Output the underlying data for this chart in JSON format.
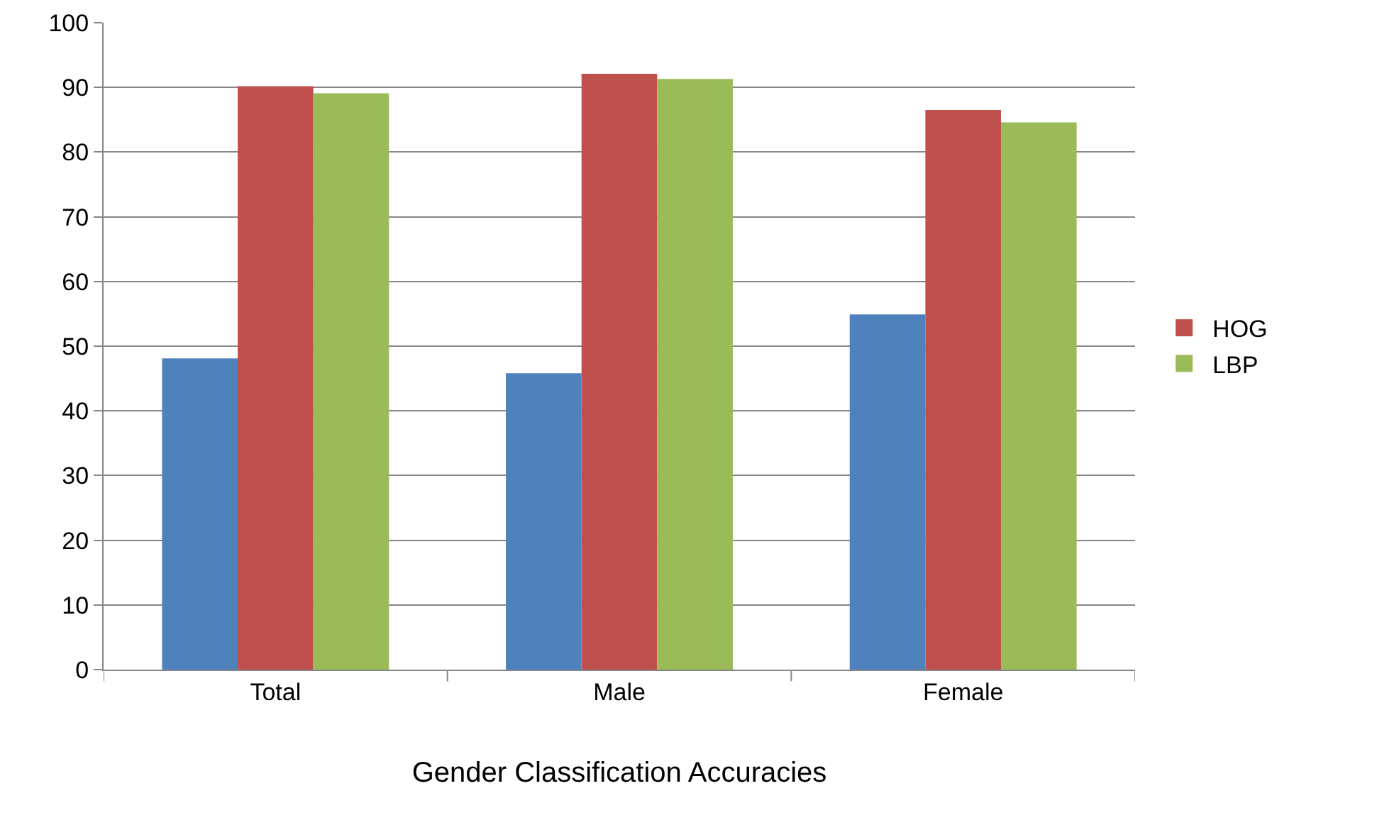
{
  "chart_data": {
    "type": "bar",
    "xlabel": "Gender Classification Accuracies",
    "categories": [
      "Total",
      "Male",
      "Female"
    ],
    "series": [
      {
        "color": "#4f81bd",
        "values": [
          48.1,
          45.8,
          54.9
        ]
      },
      {
        "name": "HOG",
        "color": "#c0504d",
        "values": [
          90.2,
          92.1,
          86.5
        ]
      },
      {
        "name": "LBP",
        "color": "#9bbb59",
        "values": [
          89.1,
          91.3,
          84.6
        ]
      }
    ],
    "ylim": [
      0,
      100
    ],
    "yticks": [
      0,
      10,
      20,
      30,
      40,
      50,
      60,
      70,
      80,
      90,
      100
    ],
    "grid": "y",
    "legend": "right"
  }
}
